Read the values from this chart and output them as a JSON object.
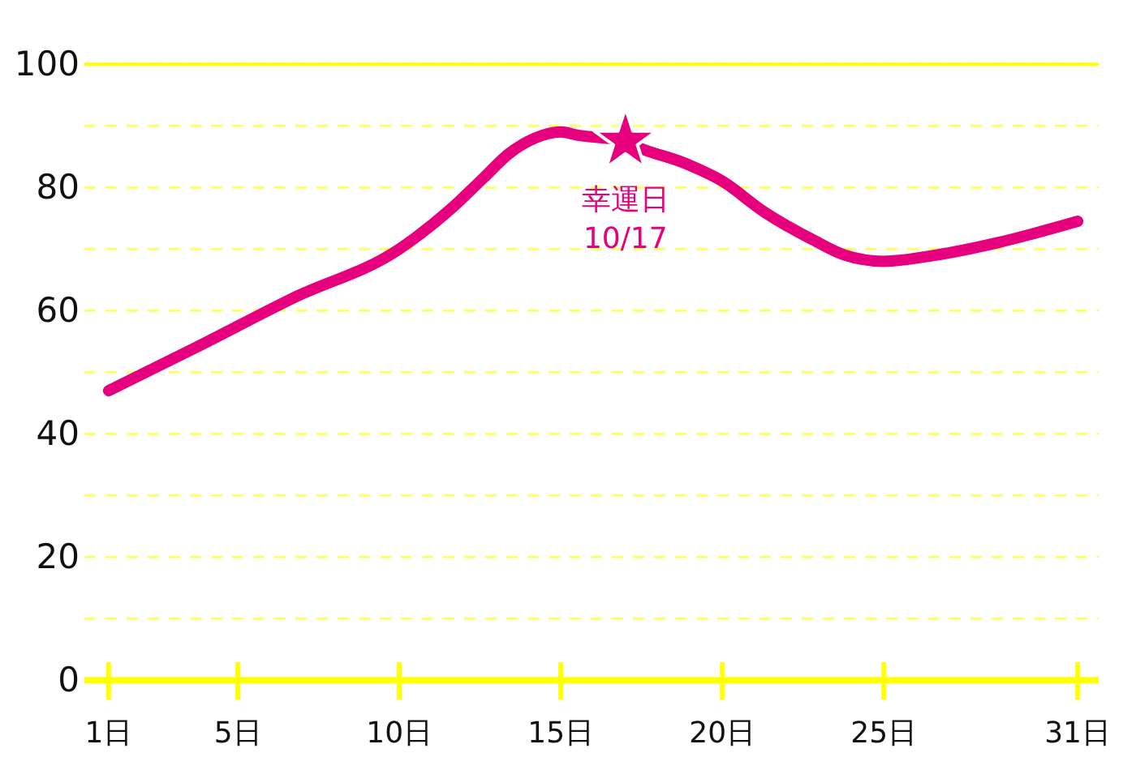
{
  "chart_data": {
    "type": "line",
    "x": [
      1,
      3.7,
      6.7,
      10,
      11.7,
      12.6,
      13.4,
      14.2,
      15,
      15.5,
      17,
      17.4,
      18.8,
      20,
      21.3,
      22.8,
      23.8,
      25,
      26.6,
      28.5,
      31
    ],
    "series": [
      {
        "type": "line",
        "color": "#e6007e",
        "values": [
          47,
          54,
          62,
          70,
          77,
          81.5,
          85.5,
          88,
          89,
          88.5,
          87.5,
          86.5,
          84,
          81,
          76,
          71.5,
          69,
          68,
          69,
          71,
          74.5
        ]
      },
      {
        "type": "scatter",
        "x": [
          17
        ],
        "values": [
          87.5
        ],
        "color": "#e6007e",
        "marker": "star"
      }
    ],
    "xlim": [
      0.25,
      31.65
    ],
    "xticks": [
      {
        "value": 1,
        "label": "1日"
      },
      {
        "value": 5,
        "label": "5日"
      },
      {
        "value": 10,
        "label": "10日"
      },
      {
        "value": 15,
        "label": "15日"
      },
      {
        "value": 20,
        "label": "20日"
      },
      {
        "value": 25,
        "label": "25日"
      },
      {
        "value": 31,
        "label": "31日"
      }
    ],
    "ylim": [
      0,
      100
    ],
    "yticks": [
      0,
      {
        "value": 10,
        "label": null
      },
      20,
      {
        "value": 30,
        "label": null
      },
      40,
      {
        "value": 50,
        "label": null
      },
      60,
      {
        "value": 70,
        "label": null
      },
      80,
      {
        "value": 90,
        "label": null
      },
      100
    ],
    "grid": "y",
    "annotations": [
      {
        "text": "幸運日\n10/17",
        "x": 17,
        "y": 87.5
      }
    ]
  }
}
